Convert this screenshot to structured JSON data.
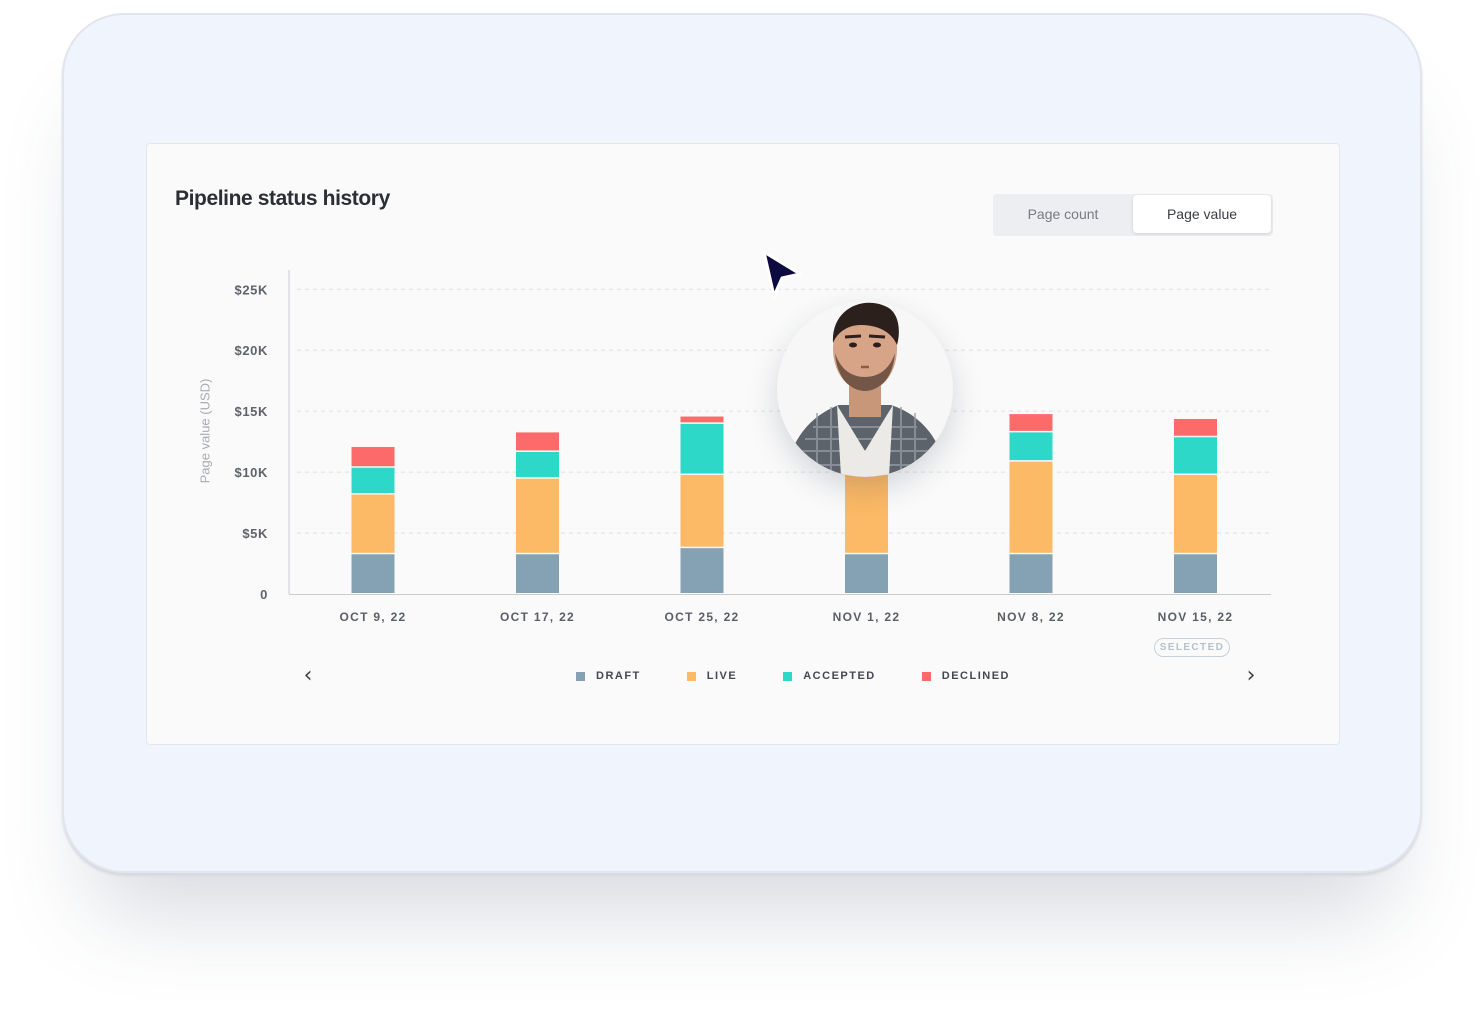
{
  "title": "Pipeline status history",
  "toggle": {
    "count_label": "Page count",
    "value_label": "Page value",
    "active": "value"
  },
  "chart_data": {
    "type": "bar",
    "stacked": true,
    "title": "Pipeline status history",
    "ylabel": "Page value (USD)",
    "xlabel": "",
    "ylim": [
      0,
      26500
    ],
    "yticks": [
      0,
      5000,
      10000,
      15000,
      20000,
      25000
    ],
    "ytick_labels": [
      "0",
      "$5K",
      "$10K",
      "$15K",
      "$20K",
      "$25K"
    ],
    "grid": true,
    "legend": "bottom",
    "categories": [
      "OCT 9, 22",
      "OCT 17, 22",
      "OCT 25, 22",
      "NOV 1, 22",
      "NOV 8, 22",
      "NOV 15, 22"
    ],
    "series": [
      {
        "name": "DRAFT",
        "color": "#85a2b4",
        "values": [
          3300,
          3300,
          3800,
          3300,
          3300,
          3300
        ]
      },
      {
        "name": "LIVE",
        "color": "#fcb966",
        "values": [
          4900,
          6200,
          6000,
          6500,
          7600,
          6500
        ]
      },
      {
        "name": "ACCEPTED",
        "color": "#2dd8c8",
        "values": [
          2200,
          2200,
          4200,
          2800,
          2400,
          3100
        ]
      },
      {
        "name": "DECLINED",
        "color": "#fd6a6a",
        "values": [
          1700,
          1600,
          600,
          1200,
          1500,
          1500
        ]
      }
    ],
    "selected_index": 5,
    "selected_label": "SELECTED"
  },
  "nav": {
    "prev": "‹",
    "next": "›"
  },
  "avatar_icon": "person-photo",
  "cursor_icon": "pointer-cursor-icon"
}
